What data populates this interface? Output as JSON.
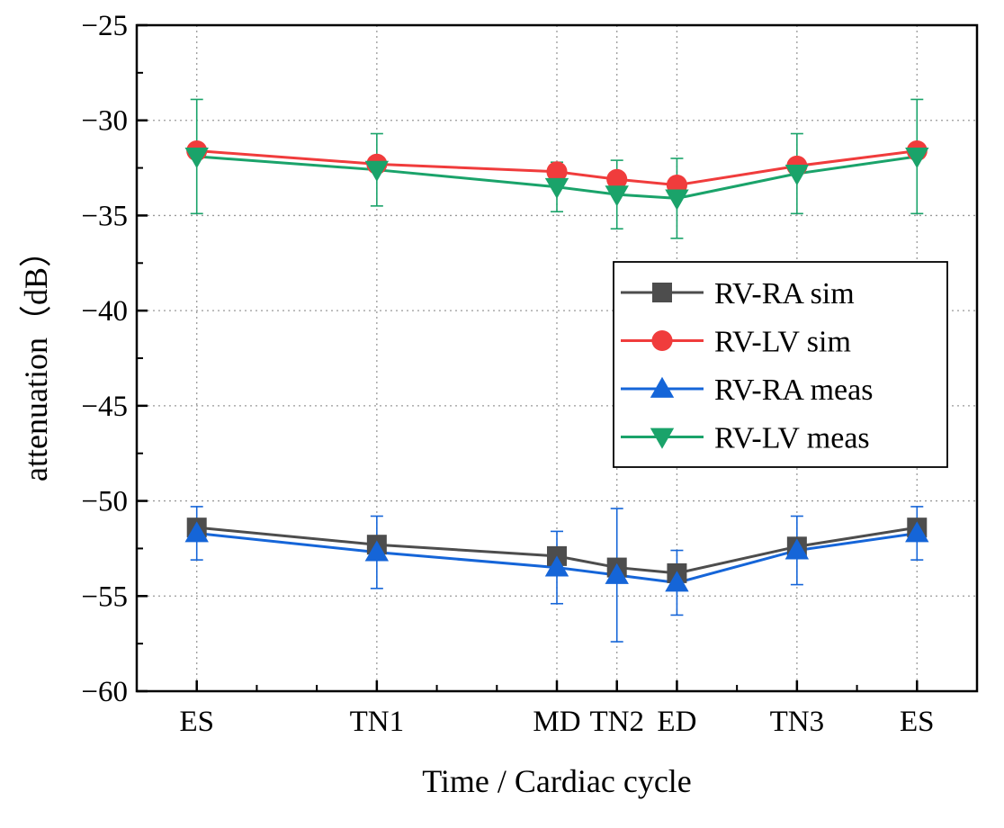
{
  "chart_data": {
    "type": "line",
    "title": "",
    "xlabel": "Time / Cardiac cycle",
    "ylabel": "attenuation（dB）",
    "categories": [
      "ES",
      "TN1",
      "MD",
      "TN2",
      "ED",
      "TN3",
      "ES"
    ],
    "x": [
      0,
      3,
      6,
      7,
      8,
      10,
      12
    ],
    "xlim": [
      -1,
      13
    ],
    "ylim": [
      -60,
      -25
    ],
    "yticks": [
      -60,
      -55,
      -50,
      -45,
      -40,
      -35,
      -30,
      -25
    ],
    "ytick_labels": [
      "−60",
      "−55",
      "−50",
      "−45",
      "−40",
      "−35",
      "−30",
      "−25"
    ],
    "grid": true,
    "legend_position": "center-right",
    "series": [
      {
        "name": "RV-RA sim",
        "color": "#4d4d4d",
        "marker": "square",
        "values": [
          -51.4,
          -52.3,
          -52.9,
          -53.5,
          -53.8,
          -52.4,
          -51.4
        ]
      },
      {
        "name": "RV-LV sim",
        "color": "#f03c3c",
        "marker": "circle",
        "values": [
          -31.6,
          -32.3,
          -32.7,
          -33.1,
          -33.4,
          -32.4,
          -31.6
        ]
      },
      {
        "name": "RV-RA meas",
        "color": "#1565d8",
        "marker": "triangle-up",
        "values": [
          -51.7,
          -52.7,
          -53.5,
          -53.9,
          -54.3,
          -52.6,
          -51.7
        ],
        "error": [
          1.4,
          1.9,
          1.9,
          3.5,
          1.7,
          1.8,
          1.4
        ]
      },
      {
        "name": "RV-LV meas",
        "color": "#1aa36a",
        "marker": "triangle-down",
        "values": [
          -31.9,
          -32.6,
          -33.5,
          -33.9,
          -34.1,
          -32.8,
          -31.9
        ],
        "error": [
          3.0,
          1.9,
          1.3,
          1.8,
          2.1,
          2.1,
          3.0
        ]
      }
    ]
  }
}
